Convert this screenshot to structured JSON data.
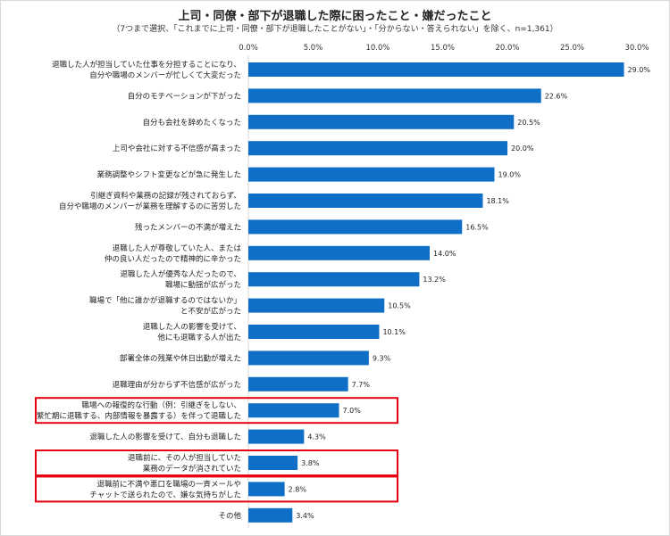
{
  "chart_data": {
    "type": "bar",
    "orientation": "horizontal",
    "title": "上司・同僚・部下が退職した際に困ったこと・嫌だったこと",
    "subtitle": "（7つまで選択、「これまでに上司・同僚・部下が退職したことがない」・「分からない・答えられない」を除く、n=1,361）",
    "xlim": [
      0,
      30
    ],
    "tick_labels": [
      "0.0%",
      "5.0%",
      "10.0%",
      "15.0%",
      "20.0%",
      "25.0%",
      "30.0%"
    ],
    "ticks": [
      0,
      5,
      10,
      15,
      20,
      25,
      30
    ],
    "grid": false,
    "bar_color": "#0f6fc6",
    "highlight_color": "#e60012",
    "categories": [
      [
        "退職した人が担当していた仕事を分担することになり、",
        "自分や職場のメンバーが忙しくて大変だった"
      ],
      [
        "自分のモチベーションが下がった"
      ],
      [
        "自分も会社を辞めたくなった"
      ],
      [
        "上司や会社に対する不信感が高まった"
      ],
      [
        "業務調整やシフト変更などが急に発生した"
      ],
      [
        "引継ぎ資料や業務の記録が残されておらず、",
        "自分や職場のメンバーが業務を理解するのに苦労した"
      ],
      [
        "残ったメンバーの不満が増えた"
      ],
      [
        "退職した人が尊敬していた人、または",
        "仲の良い人だったので精神的に辛かった"
      ],
      [
        "退職した人が優秀な人だったので、",
        "職場に動揺が広がった"
      ],
      [
        "職場で「他に誰かが退職するのではないか」",
        "と不安が広がった"
      ],
      [
        "退職した人の影響を受けて、",
        "他にも退職する人が出た"
      ],
      [
        "部署全体の残業や休日出勤が増えた"
      ],
      [
        "退職理由が分からず不信感が広がった"
      ],
      [
        "職場への報復的な行動（例：引継ぎをしない、",
        "繁忙期に退職する、内部情報を暴露する）を伴って退職した"
      ],
      [
        "退職した人の影響を受けて、自分も退職した"
      ],
      [
        "退職前に、その人が担当していた",
        "業務のデータが消されていた"
      ],
      [
        "退職前に不満や悪口を職場の一斉メールや",
        "チャットで送られたので、嫌な気持ちがした"
      ],
      [
        "その他"
      ]
    ],
    "values": [
      29.0,
      22.6,
      20.5,
      20.0,
      19.0,
      18.1,
      16.5,
      14.0,
      13.2,
      10.5,
      10.1,
      9.3,
      7.7,
      7.0,
      4.3,
      3.8,
      2.8,
      3.4
    ],
    "value_labels": [
      "29.0%",
      "22.6%",
      "20.5%",
      "20.0%",
      "19.0%",
      "18.1%",
      "16.5%",
      "14.0%",
      "13.2%",
      "10.5%",
      "10.1%",
      "9.3%",
      "7.7%",
      "7.0%",
      "4.3%",
      "3.8%",
      "2.8%",
      "3.4%"
    ],
    "highlighted": [
      13,
      15,
      16
    ]
  }
}
